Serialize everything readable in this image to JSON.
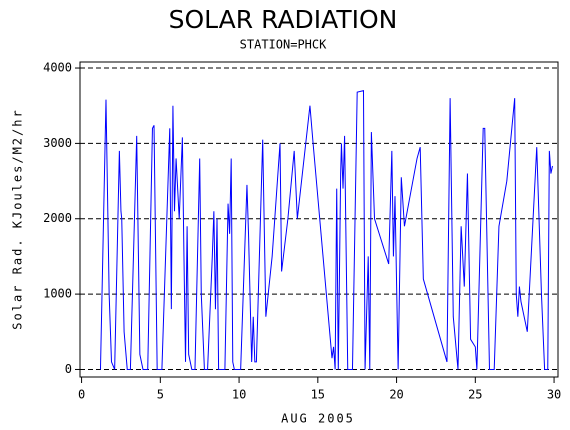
{
  "chart_data": {
    "type": "line",
    "title": "SOLAR RADIATION",
    "subtitle": "STATION=PHCK",
    "x_label": "AUG 2005",
    "y_label": "Solar Rad. KJoules/M2/hr",
    "xlim": [
      -0.1,
      30.25
    ],
    "ylim": [
      -100,
      4080
    ],
    "xticks": [
      0,
      5,
      10,
      15,
      20,
      25,
      30
    ],
    "yticks": [
      0,
      1000,
      2000,
      3000,
      4000
    ],
    "grid": true,
    "x": [
      1.2,
      1.55,
      1.75,
      1.9,
      2.1,
      2.4,
      2.5,
      2.55,
      2.7,
      2.9,
      3.1,
      3.5,
      3.7,
      3.9,
      4.2,
      4.5,
      4.6,
      4.8,
      5.1,
      5.6,
      5.7,
      5.8,
      5.9,
      6.0,
      6.2,
      6.4,
      6.5,
      6.6,
      6.7,
      6.8,
      7.0,
      7.2,
      7.5,
      7.6,
      7.8,
      8.0,
      8.3,
      8.4,
      8.5,
      8.6,
      8.7,
      9.1,
      9.3,
      9.4,
      9.5,
      9.6,
      9.7,
      10.1,
      10.5,
      10.6,
      10.8,
      10.9,
      11.0,
      11.1,
      11.5,
      11.7,
      12.1,
      12.6,
      12.7,
      13.1,
      13.5,
      13.7,
      14.5,
      14.7,
      15.9,
      16.0,
      16.1,
      16.2,
      16.3,
      16.45,
      16.5,
      16.6,
      16.7,
      16.9,
      17.2,
      17.5,
      17.9,
      18.0,
      18.2,
      18.3,
      18.4,
      18.6,
      19.5,
      19.7,
      19.8,
      19.9,
      20.1,
      20.3,
      20.5,
      21.3,
      21.5,
      21.7,
      23.2,
      23.4,
      23.6,
      23.9,
      24.1,
      24.3,
      24.5,
      24.7,
      25.0,
      25.1,
      25.5,
      25.6,
      25.9,
      26.2,
      26.5,
      27.0,
      27.5,
      27.6,
      27.7,
      27.8,
      27.9,
      28.3,
      28.9,
      29.2,
      29.4,
      29.6,
      29.7,
      29.8,
      29.9
    ],
    "series": [
      {
        "name": "Solar Rad.",
        "color": "#0000ff",
        "values": [
          0,
          3580,
          1000,
          100,
          0,
          2900,
          2100,
          2000,
          500,
          0,
          0,
          3100,
          200,
          0,
          0,
          3200,
          3240,
          0,
          0,
          3200,
          800,
          3500,
          2100,
          2800,
          2000,
          3080,
          1500,
          100,
          1900,
          200,
          0,
          0,
          2800,
          1000,
          0,
          0,
          1500,
          2100,
          800,
          2000,
          0,
          0,
          2200,
          1800,
          2800,
          100,
          0,
          0,
          2450,
          1800,
          100,
          700,
          100,
          100,
          3050,
          700,
          1500,
          3000,
          1300,
          2000,
          2900,
          2000,
          3500,
          3000,
          150,
          300,
          0,
          2400,
          0,
          2600,
          3000,
          2400,
          3100,
          0,
          0,
          3680,
          3700,
          0,
          1500,
          0,
          3150,
          2000,
          1400,
          2900,
          1500,
          2300,
          0,
          2550,
          1900,
          2800,
          2950,
          1200,
          100,
          3600,
          700,
          0,
          1900,
          1100,
          2600,
          400,
          300,
          0,
          3200,
          3200,
          0,
          0,
          1900,
          2500,
          3600,
          1000,
          700,
          1100,
          900,
          500,
          2950,
          1000,
          0,
          0,
          2900,
          2600,
          2700
        ]
      }
    ]
  }
}
